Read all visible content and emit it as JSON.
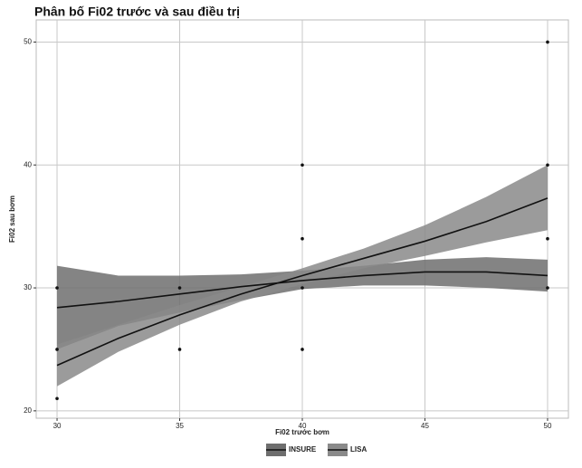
{
  "chart_data": {
    "type": "smooth-scatter",
    "title": "Phân bố Fi02 trước và sau điều trị",
    "x_label": "Fi02 trước bơm",
    "y_label": "Fi02 sau bơm",
    "xlim": [
      29.15,
      50.85
    ],
    "ylim": [
      19.4,
      51.8
    ],
    "xticks": [
      30,
      35,
      40,
      45,
      50
    ],
    "yticks": [
      20,
      30,
      40,
      50
    ],
    "grid": true,
    "legend_position": "bottom",
    "points": {
      "color": "#111111",
      "x": [
        30,
        30,
        30,
        35,
        35,
        40,
        40,
        40,
        40,
        50,
        50,
        50,
        50
      ],
      "y": [
        30,
        25,
        21,
        30,
        25,
        40,
        34,
        30,
        25,
        50,
        40,
        34,
        30
      ]
    },
    "series": [
      {
        "name": "INSURE",
        "color": "#111111",
        "fill": "#6e6e6e",
        "x": [
          30,
          32.5,
          35,
          37.5,
          40,
          42.5,
          45,
          47.5,
          50
        ],
        "values": [
          28.4,
          28.9,
          29.5,
          30.1,
          30.6,
          31.0,
          31.3,
          31.3,
          31.0
        ],
        "lower": [
          25.0,
          26.9,
          28.0,
          29.0,
          29.9,
          30.2,
          30.2,
          30.0,
          29.7
        ],
        "upper": [
          31.8,
          31.0,
          31.0,
          31.1,
          31.4,
          31.8,
          32.3,
          32.5,
          32.3
        ]
      },
      {
        "name": "LISA",
        "color": "#111111",
        "fill": "#8a8a8a",
        "x": [
          30,
          32.5,
          35,
          37.5,
          40,
          42.5,
          45,
          47.5,
          50
        ],
        "values": [
          23.7,
          25.9,
          27.8,
          29.5,
          31.0,
          32.4,
          33.8,
          35.4,
          37.3
        ],
        "lower": [
          22.0,
          24.8,
          27.0,
          28.9,
          30.3,
          31.6,
          32.6,
          33.7,
          34.7
        ],
        "upper": [
          25.4,
          27.0,
          28.6,
          30.1,
          31.6,
          33.2,
          35.1,
          37.4,
          40.0
        ]
      }
    ]
  }
}
